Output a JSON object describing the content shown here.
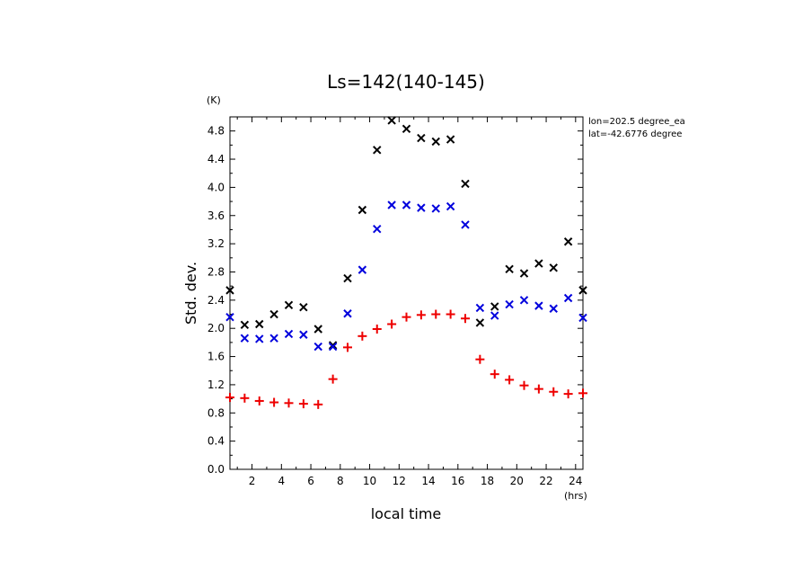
{
  "chart_data": {
    "type": "scatter",
    "title": "Ls=142(140-145)",
    "xlabel": "local time",
    "ylabel": "Std. dev.",
    "x_unit": "(hrs)",
    "y_unit": "(K)",
    "xlim": [
      0.5,
      24.5
    ],
    "ylim": [
      0.0,
      5.0
    ],
    "x_ticks": [
      2,
      4,
      6,
      8,
      10,
      12,
      14,
      16,
      18,
      20,
      22,
      24
    ],
    "y_ticks": [
      0.0,
      0.4,
      0.8,
      1.2,
      1.6,
      2.0,
      2.4,
      2.8,
      3.2,
      3.6,
      4.0,
      4.4,
      4.8
    ],
    "annotations": [
      "lon=202.5 degree_ea",
      "lat=-42.6776 degree"
    ],
    "grid": false,
    "x": [
      0.5,
      1.5,
      2.5,
      3.5,
      4.5,
      5.5,
      6.5,
      7.5,
      8.5,
      9.5,
      10.5,
      11.5,
      12.5,
      13.5,
      14.5,
      15.5,
      16.5,
      17.5,
      18.5,
      19.5,
      20.5,
      21.5,
      22.5,
      23.5,
      24.5
    ],
    "series": [
      {
        "marker": "x",
        "color": "#000000",
        "values": [
          2.54,
          2.05,
          2.06,
          2.2,
          2.33,
          2.3,
          1.99,
          1.76,
          2.71,
          3.68,
          4.53,
          4.95,
          4.83,
          4.7,
          4.65,
          4.68,
          4.05,
          2.08,
          2.31,
          2.84,
          2.78,
          2.92,
          2.86,
          3.23,
          2.54
        ]
      },
      {
        "marker": "x",
        "color": "#0000dd",
        "values": [
          2.16,
          1.86,
          1.85,
          1.86,
          1.92,
          1.91,
          1.74,
          1.74,
          2.21,
          2.83,
          3.41,
          3.75,
          3.75,
          3.71,
          3.7,
          3.73,
          3.47,
          2.29,
          2.18,
          2.34,
          2.4,
          2.32,
          2.28,
          2.43,
          2.15
        ]
      },
      {
        "marker": "+",
        "color": "#ee0000",
        "values": [
          1.02,
          1.01,
          0.97,
          0.95,
          0.94,
          0.93,
          0.92,
          1.28,
          1.73,
          1.89,
          1.99,
          2.06,
          2.16,
          2.19,
          2.2,
          2.2,
          2.14,
          1.56,
          1.35,
          1.27,
          1.19,
          1.14,
          1.1,
          1.07,
          1.08
        ]
      }
    ]
  }
}
